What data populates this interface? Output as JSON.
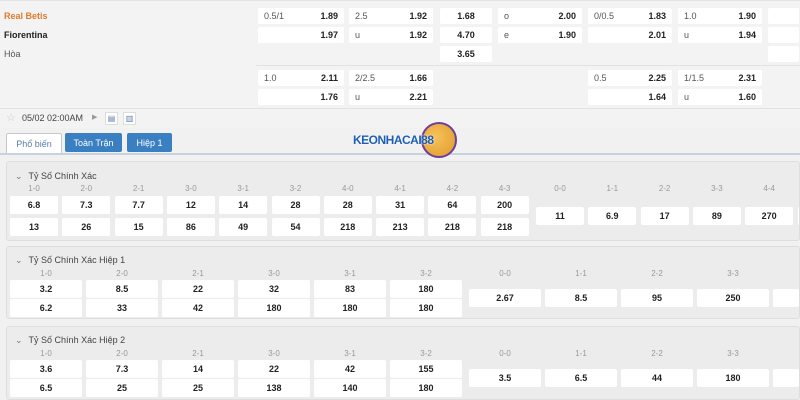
{
  "match": {
    "home": "Real Betis",
    "away": "Fiorentina",
    "draw": "Hòa",
    "home_color": "#e07b2a"
  },
  "odds_top": {
    "row1": {
      "handicap": {
        "line": "0.5/1",
        "home": "1.89",
        "away": "1.97"
      },
      "over_under": {
        "line": "2.5",
        "over": "1.92",
        "under_label": "u",
        "under": "1.92"
      },
      "x12": {
        "home": "1.68",
        "away": "4.70",
        "draw": "3.65"
      },
      "odd_even": {
        "odd_label": "o",
        "odd": "2.00",
        "even_label": "e",
        "even": "1.90"
      },
      "h1_handicap": {
        "line": "0/0.5",
        "home": "1.83",
        "away": "2.01"
      },
      "h1_over_under": {
        "line": "1.0",
        "over": "1.90",
        "under_label": "u",
        "under": "1.94"
      }
    },
    "row2": {
      "handicap": {
        "line": "1.0",
        "home": "2.11",
        "away": "1.76"
      },
      "over_under": {
        "line": "2/2.5",
        "over": "1.66",
        "under_label": "u",
        "under": "2.21"
      },
      "h1_handicap": {
        "line": "0.5",
        "home": "2.25",
        "away": "1.64"
      },
      "h1_over_under": {
        "line": "1/1.5",
        "over": "2.31",
        "under_label": "u",
        "under": "1.60"
      }
    }
  },
  "toolbar": {
    "datetime": "05/02 02:00AM",
    "icons": [
      "star-icon",
      "play-icon",
      "scoreboard-icon",
      "stats-icon"
    ]
  },
  "tabs": [
    {
      "label": "Phổ biến",
      "active": true
    },
    {
      "label": "Toàn Trận",
      "active": false
    },
    {
      "label": "Hiệp 1",
      "active": false
    }
  ],
  "logo": {
    "text": "KEONHACAI88"
  },
  "accent_color": "#3a7fc1",
  "sections": [
    {
      "title": "Tỷ Số Chính Xác",
      "win_labels": [
        "1-0",
        "2-0",
        "2-1",
        "3-0",
        "3-1",
        "3-2",
        "4-0",
        "4-1",
        "4-2",
        "4-3"
      ],
      "home_values": [
        "6.8",
        "7.3",
        "7.7",
        "12",
        "14",
        "28",
        "28",
        "31",
        "64",
        "200"
      ],
      "away_values": [
        "13",
        "26",
        "15",
        "86",
        "49",
        "54",
        "218",
        "213",
        "218",
        "218"
      ],
      "draw_labels": [
        "0-0",
        "1-1",
        "2-2",
        "3-3",
        "4-4"
      ],
      "draw_values": [
        "11",
        "6.9",
        "17",
        "89",
        "270"
      ]
    },
    {
      "title": "Tỷ Số Chính Xác Hiệp 1",
      "win_labels": [
        "1-0",
        "2-0",
        "2-1",
        "3-0",
        "3-1",
        "3-2"
      ],
      "home_values": [
        "3.2",
        "8.5",
        "22",
        "32",
        "83",
        "180"
      ],
      "away_values": [
        "6.2",
        "33",
        "42",
        "180",
        "180",
        "180"
      ],
      "draw_labels": [
        "0-0",
        "1-1",
        "2-2",
        "3-3"
      ],
      "draw_values": [
        "2.67",
        "8.5",
        "95",
        "250"
      ]
    },
    {
      "title": "Tỷ Số Chính Xác Hiệp 2",
      "win_labels": [
        "1-0",
        "2-0",
        "2-1",
        "3-0",
        "3-1",
        "3-2"
      ],
      "home_values": [
        "3.6",
        "7.3",
        "14",
        "22",
        "42",
        "155"
      ],
      "away_values": [
        "6.5",
        "25",
        "25",
        "138",
        "140",
        "180"
      ],
      "draw_labels": [
        "0-0",
        "1-1",
        "2-2",
        "3-3"
      ],
      "draw_values": [
        "3.5",
        "6.5",
        "44",
        "180"
      ]
    }
  ]
}
